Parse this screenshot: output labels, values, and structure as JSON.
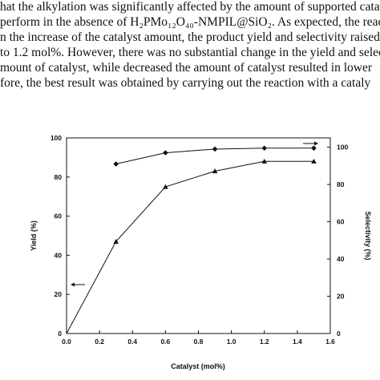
{
  "text": {
    "lines": [
      "hat the alkylation was significantly affected by the amount of supported cata",
      " perform in the absence of H₂PMo₁₂O₄₀-NMPIL@SiO₂. As expected, the reac",
      "n the increase of the catalyst amount, the product yield and selectivity raised w",
      " to 1.2 mol%. However, there was no substantial change in the yield and selec",
      "mount of catalyst, while decreased the amount of catalyst resulted in lower",
      "fore, the best result was obtained by carrying out the reaction with a cataly"
    ]
  },
  "chart_data": {
    "type": "line",
    "xlabel": "Catalyst  (mol%)",
    "ylabel": "Yield (%)",
    "y2label": "Selectivity (%)",
    "xlim": [
      0.0,
      1.6
    ],
    "ylim": [
      0,
      100
    ],
    "y2lim": [
      0,
      105
    ],
    "x_ticks": [
      "0.0",
      "0.2",
      "0.4",
      "0.6",
      "0.8",
      "1.0",
      "1.2",
      "1.4",
      "1.6"
    ],
    "y_ticks": [
      "0",
      "20",
      "40",
      "60",
      "80",
      "100"
    ],
    "y2_ticks": [
      "0",
      "20",
      "40",
      "60",
      "80",
      "100"
    ],
    "grid": false,
    "series": [
      {
        "axis": "left",
        "marker": "triangle",
        "x": [
          0.0,
          0.3,
          0.6,
          0.9,
          1.2,
          1.5
        ],
        "values": [
          0,
          47,
          75,
          83,
          88,
          88
        ]
      },
      {
        "axis": "right",
        "marker": "diamond",
        "x": [
          0.3,
          0.6,
          0.9,
          1.2,
          1.5
        ],
        "values": [
          91,
          97,
          99,
          99.5,
          99.5
        ]
      }
    ],
    "axis_indicators": [
      {
        "points_to": "left",
        "near_y": 25
      },
      {
        "points_to": "right",
        "near_y2": 102
      }
    ]
  }
}
